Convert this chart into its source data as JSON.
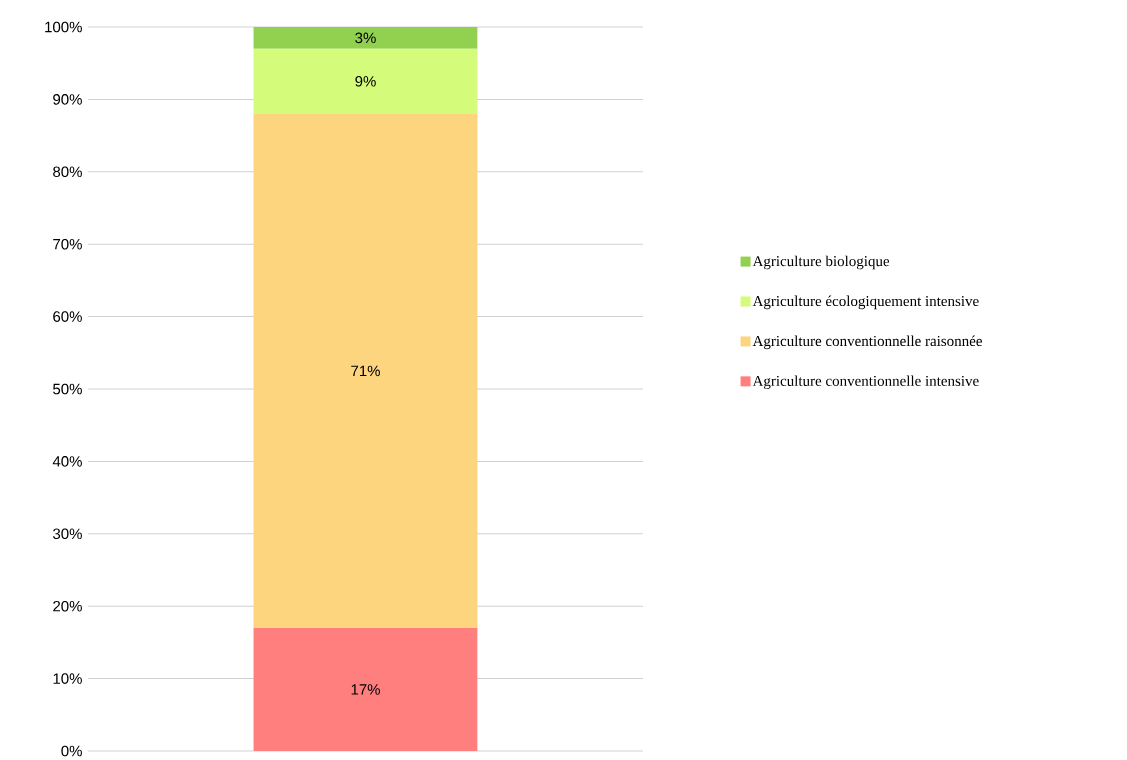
{
  "chart_data": {
    "type": "bar",
    "stacked": true,
    "categories": [
      null
    ],
    "series": [
      {
        "name": "Agriculture conventionnelle intensive",
        "color": "#ff7f7f",
        "values": [
          17
        ],
        "value_labels": [
          "17%"
        ]
      },
      {
        "name": "Agriculture conventionnelle raisonnée",
        "color": "#fdd57e",
        "values": [
          71
        ],
        "value_labels": [
          "71%"
        ]
      },
      {
        "name": "Agriculture écologiquement intensive",
        "color": "#d4fb79",
        "values": [
          9
        ],
        "value_labels": [
          "9%"
        ]
      },
      {
        "name": "Agriculture biologique",
        "color": "#92d050",
        "values": [
          3
        ],
        "value_labels": [
          "3%"
        ]
      }
    ],
    "ylim": [
      0,
      100
    ],
    "yticks": [
      {
        "value": 0,
        "label": "0%"
      },
      {
        "value": 10,
        "label": "10%"
      },
      {
        "value": 20,
        "label": "20%"
      },
      {
        "value": 30,
        "label": "30%"
      },
      {
        "value": 40,
        "label": "40%"
      },
      {
        "value": 50,
        "label": "50%"
      },
      {
        "value": 60,
        "label": "60%"
      },
      {
        "value": 70,
        "label": "70%"
      },
      {
        "value": 80,
        "label": "80%"
      },
      {
        "value": 90,
        "label": "90%"
      },
      {
        "value": 100,
        "label": "100%"
      }
    ],
    "grid": "y",
    "legend": "right"
  }
}
